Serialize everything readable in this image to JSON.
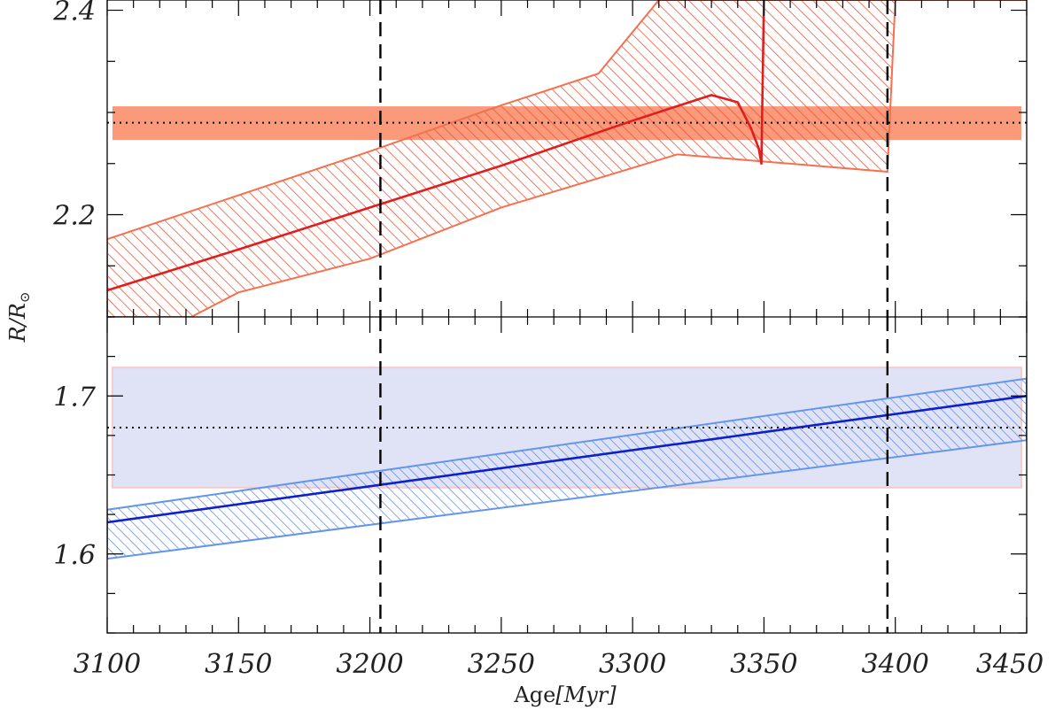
{
  "chart_data": [
    {
      "panel": "top",
      "type": "line",
      "xlim": [
        3100,
        3450
      ],
      "ylim": [
        2.1,
        2.41
      ],
      "yticks_major": [
        2.2,
        2.4
      ],
      "yticks_major_labels": [
        "2.2",
        "2.4"
      ],
      "obs_value": 2.29,
      "obs_band": [
        2.273,
        2.306
      ],
      "vlines": [
        3204,
        3397
      ],
      "model_line": {
        "x": [
          3100,
          3150,
          3200,
          3250,
          3300,
          3330,
          3340,
          3345,
          3348,
          3349,
          3350
        ],
        "y": [
          2.126,
          2.166,
          2.207,
          2.248,
          2.292,
          2.317,
          2.31,
          2.285,
          2.265,
          2.25,
          2.41
        ]
      },
      "uncertainty_band": {
        "upper_x": [
          3100,
          3150,
          3200,
          3250,
          3287,
          3310,
          3397,
          3400,
          3450
        ],
        "upper_y": [
          2.176,
          2.219,
          2.262,
          2.307,
          2.338,
          2.41,
          2.41,
          2.41,
          2.41
        ],
        "lower_x": [
          3450,
          3400,
          3397,
          3317,
          3250,
          3200,
          3150,
          3132,
          3100
        ],
        "lower_y": [
          2.41,
          2.41,
          2.242,
          2.259,
          2.207,
          2.157,
          2.124,
          2.1,
          2.1
        ]
      },
      "colors": {
        "line": "#e01e1e",
        "band_stroke": "#f4704f",
        "hatch": "#e8573c",
        "obs_fill": "#fa9a7a"
      }
    },
    {
      "panel": "bottom",
      "type": "line",
      "xlim": [
        3100,
        3450
      ],
      "ylim": [
        1.55,
        1.75
      ],
      "yticks_major": [
        1.6,
        1.7
      ],
      "yticks_major_labels": [
        "1.6",
        "1.7"
      ],
      "obs_value": 1.68,
      "obs_band": [
        1.642,
        1.718
      ],
      "vlines": [
        3204,
        3397
      ],
      "model_line": {
        "x": [
          3100,
          3450
        ],
        "y": [
          1.62,
          1.7
        ]
      },
      "uncertainty_band": {
        "upper_x": [
          3100,
          3450
        ],
        "upper_y": [
          1.628,
          1.711
        ],
        "lower_x": [
          3450,
          3100
        ],
        "lower_y": [
          1.672,
          1.597
        ]
      },
      "colors": {
        "line": "#1020c8",
        "band_stroke": "#6495ed",
        "hatch": "#5b8de8",
        "obs_fill": "#e0e3f6",
        "obs_edge": "#f7caca"
      }
    }
  ],
  "x_axis": {
    "ticks": [
      3100,
      3150,
      3200,
      3250,
      3300,
      3350,
      3400,
      3450
    ],
    "tick_labels": [
      "3100",
      "3150",
      "3200",
      "3250",
      "3300",
      "3350",
      "3400",
      "3450"
    ],
    "label_main": "Age",
    "label_unit": "[Myr]"
  },
  "y_axis": {
    "label_main": "R/R",
    "label_sub": "⊙"
  }
}
